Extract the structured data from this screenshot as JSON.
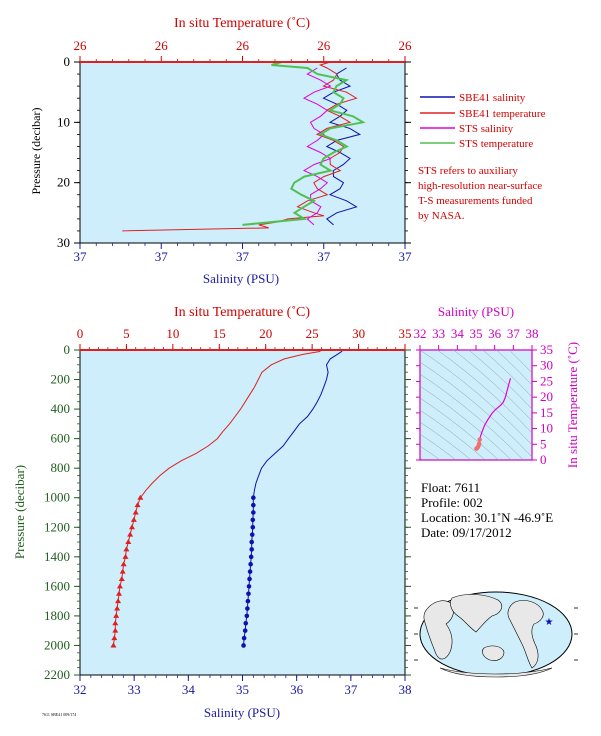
{
  "top_chart": {
    "top_axis_label": "In situ Temperature (˚C)",
    "top_ticks": [
      "26",
      "26",
      "26",
      "26",
      "26"
    ],
    "bottom_axis_label": "Salinity (PSU)",
    "bottom_ticks": [
      "37",
      "37",
      "37",
      "37",
      "37"
    ],
    "y_axis_label": "Pressure (decibar)",
    "y_ticks": [
      "0",
      "10",
      "20",
      "30"
    ],
    "legend": [
      "SBE41 salinity",
      "SBE41 temperature",
      "STS salinity",
      "STS temperature"
    ],
    "note": [
      "STS refers to auxiliary",
      "high-resolution near-surface",
      "T-S measurements funded",
      "by NASA."
    ]
  },
  "main_chart": {
    "top_axis_label": "In situ Temperature (˚C)",
    "top_ticks": [
      "0",
      "5",
      "10",
      "15",
      "20",
      "25",
      "30",
      "35"
    ],
    "bottom_axis_label": "Salinity (PSU)",
    "bottom_ticks": [
      "32",
      "33",
      "34",
      "35",
      "36",
      "37",
      "38"
    ],
    "y_axis_label": "Pressure (decibar)",
    "y_ticks": [
      "0",
      "200",
      "400",
      "600",
      "800",
      "1000",
      "1200",
      "1400",
      "1600",
      "1800",
      "2000",
      "2200"
    ]
  },
  "ts_chart": {
    "top_axis_label": "Salinity (PSU)",
    "top_ticks": [
      "32",
      "33",
      "34",
      "35",
      "36",
      "37",
      "38"
    ],
    "right_axis_label": "In situ Temperature (˚C)",
    "right_ticks": [
      "0",
      "5",
      "10",
      "15",
      "20",
      "25",
      "30",
      "35"
    ]
  },
  "info": {
    "float": "Float:  7611",
    "profile": "Profile:  002",
    "location": "Location:  30.1˚N  -46.9˚E",
    "date": "Date:  09/17/2012"
  },
  "footer_small": "7611 SBE41 009/174",
  "colors": {
    "background": "#cdeefa",
    "temperature": "#e02020",
    "salinity": "#1010b0",
    "sts_salinity": "#e000e0",
    "sts_temperature": "#50c050",
    "temperature_axis": "#d40000",
    "salinity_axis": "#1a1aa0",
    "pressure_axis": "#1f5f1f",
    "ts_axis": "#d000c0"
  },
  "chart_data": [
    {
      "type": "line",
      "description_series": "profile",
      "x_temperature_range": [
        0,
        35
      ],
      "x_salinity_range": [
        32,
        38
      ],
      "ylim": [
        2200,
        0
      ],
      "series": [
        {
          "name": "",
          "kind": "temperature",
          "pressure": [
            0,
            10,
            30,
            60,
            100,
            150,
            200,
            250,
            300,
            350,
            400,
            450,
            500,
            550,
            600,
            650,
            700,
            750,
            800,
            850,
            900,
            950,
            1000,
            1050,
            1100,
            1150,
            1200,
            1250,
            1300,
            1350,
            1400,
            1450,
            1500,
            1550,
            1600,
            1650,
            1700,
            1750,
            1800,
            1850,
            1900,
            1950,
            2000
          ],
          "values": [
            26.0,
            25.8,
            24.0,
            22.0,
            20.6,
            19.6,
            19.2,
            18.8,
            18.3,
            17.8,
            17.3,
            16.7,
            16.1,
            15.4,
            14.8,
            13.8,
            12.5,
            10.9,
            9.6,
            8.6,
            7.8,
            7.1,
            6.5,
            6.2,
            6.0,
            5.8,
            5.6,
            5.4,
            5.2,
            5.0,
            4.9,
            4.7,
            4.6,
            4.5,
            4.3,
            4.2,
            4.1,
            4.0,
            3.9,
            3.8,
            3.8,
            3.7,
            3.6
          ]
        },
        {
          "name": "",
          "kind": "salinity",
          "pressure": [
            0,
            10,
            30,
            60,
            100,
            150,
            200,
            250,
            300,
            350,
            400,
            450,
            500,
            550,
            600,
            650,
            700,
            750,
            800,
            850,
            900,
            950,
            1000,
            1050,
            1100,
            1150,
            1200,
            1250,
            1300,
            1350,
            1400,
            1450,
            1500,
            1550,
            1600,
            1650,
            1700,
            1750,
            1800,
            1850,
            1900,
            1950,
            2000
          ],
          "values": [
            36.85,
            36.83,
            36.75,
            36.62,
            36.55,
            36.58,
            36.55,
            36.5,
            36.45,
            36.38,
            36.3,
            36.2,
            36.05,
            35.95,
            35.85,
            35.75,
            35.6,
            35.45,
            35.35,
            35.3,
            35.25,
            35.22,
            35.2,
            35.2,
            35.2,
            35.19,
            35.19,
            35.18,
            35.17,
            35.17,
            35.16,
            35.15,
            35.14,
            35.13,
            35.12,
            35.11,
            35.1,
            35.09,
            35.08,
            35.06,
            35.05,
            35.03,
            35.02
          ]
        }
      ]
    },
    {
      "type": "line",
      "description_series": "near-surface",
      "ylim": [
        30,
        0
      ],
      "series": [
        {
          "name": "SBE41 salinity",
          "pressure": [
            1,
            3,
            5,
            7,
            9,
            11,
            13,
            15,
            17,
            19,
            21,
            23,
            25,
            27
          ],
          "values": [
            0.82,
            0.8,
            0.78,
            0.79,
            0.8,
            0.83,
            0.79,
            0.8,
            0.81,
            0.78,
            0.8,
            0.82,
            0.79,
            0.78
          ]
        },
        {
          "name": "SBE41 temperature",
          "pressure": [
            0,
            1,
            3,
            5,
            7,
            9,
            11,
            13,
            15,
            17,
            19,
            21,
            23,
            25,
            26,
            27,
            28
          ],
          "values": [
            0.77,
            0.76,
            0.78,
            0.82,
            0.79,
            0.8,
            0.76,
            0.78,
            0.8,
            0.77,
            0.75,
            0.73,
            0.7,
            0.72,
            0.64,
            0.55,
            0.13
          ]
        },
        {
          "name": "STS salinity",
          "pressure": [
            1,
            3,
            5,
            7,
            9,
            11,
            13,
            15,
            17,
            19,
            21,
            23,
            25,
            27
          ],
          "values": [
            0.73,
            0.74,
            0.72,
            0.73,
            0.74,
            0.72,
            0.73,
            0.74,
            0.72,
            0.73,
            0.74,
            0.71,
            0.73,
            0.72
          ]
        },
        {
          "name": "STS temperature",
          "pressure": [
            0,
            1,
            3,
            5,
            7,
            9,
            11,
            13,
            15,
            17,
            19,
            21,
            23,
            25,
            27
          ],
          "values": [
            0.62,
            0.7,
            0.82,
            0.78,
            0.8,
            0.84,
            0.77,
            0.79,
            0.78,
            0.74,
            0.69,
            0.65,
            0.72,
            0.66,
            0.5
          ]
        }
      ]
    },
    {
      "type": "line",
      "description_series": "T-S",
      "xlim": [
        32,
        38
      ],
      "ylim": [
        0,
        35
      ],
      "series": [
        {
          "name": "",
          "salinity": [
            35.02,
            35.06,
            35.1,
            35.14,
            35.17,
            35.2,
            35.22,
            35.3,
            35.45,
            35.6,
            35.85,
            36.05,
            36.3,
            36.45,
            36.55,
            36.6,
            36.75,
            36.85
          ],
          "temperature": [
            3.6,
            3.8,
            4.1,
            4.6,
            5.2,
            6.5,
            7.1,
            8.6,
            10.9,
            12.5,
            14.8,
            16.1,
            17.3,
            18.3,
            19.6,
            20.6,
            24.0,
            26.0
          ]
        }
      ]
    }
  ]
}
